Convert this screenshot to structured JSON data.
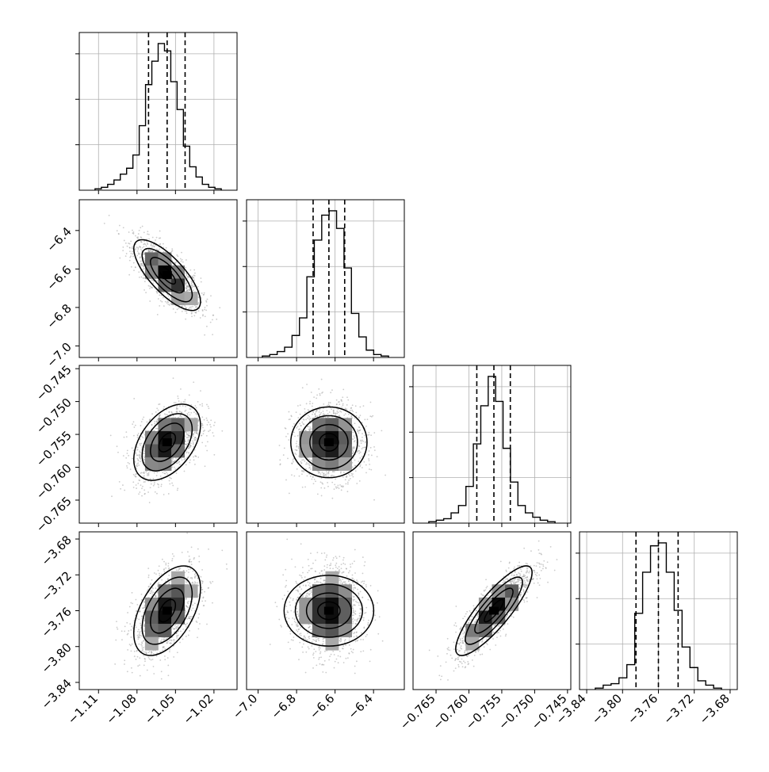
{
  "chart_data": {
    "type": "corner",
    "parameters": [
      {
        "index": 0,
        "range": [
          -1.125,
          -1.002
        ],
        "ticks": [
          -1.11,
          -1.08,
          -1.05,
          -1.02
        ],
        "tick_labels": [
          "−1.11",
          "−1.08",
          "−1.05",
          "−1.02"
        ],
        "quantiles": [
          -1.071,
          -1.0565,
          -1.0425
        ],
        "hist_values": [
          0.01,
          0.02,
          0.04,
          0.07,
          0.11,
          0.15,
          0.24,
          0.44,
          0.72,
          0.88,
          1.0,
          0.95,
          0.74,
          0.55,
          0.3,
          0.16,
          0.09,
          0.04,
          0.02,
          0.01
        ],
        "hist_yticks": [
          0.31,
          0.62,
          0.93
        ]
      },
      {
        "index": 1,
        "range": [
          -7.06,
          -6.24
        ],
        "ticks": [
          -7.0,
          -6.8,
          -6.6,
          -6.4
        ],
        "tick_labels": [
          "−7.0",
          "−6.8",
          "−6.6",
          "−6.4"
        ],
        "quantiles": [
          -6.714,
          -6.632,
          -6.55
        ],
        "hist_values": [
          0.01,
          0.02,
          0.04,
          0.07,
          0.15,
          0.27,
          0.55,
          0.8,
          0.97,
          1.0,
          0.88,
          0.61,
          0.3,
          0.14,
          0.05,
          0.02,
          0.01
        ],
        "hist_yticks": [
          0.31,
          0.62,
          0.93
        ]
      },
      {
        "index": 2,
        "range": [
          -0.7685,
          -0.7445
        ],
        "ticks": [
          -0.765,
          -0.76,
          -0.755,
          -0.75,
          -0.745
        ],
        "tick_labels": [
          "−0.765",
          "−0.760",
          "−0.755",
          "−0.750",
          "−0.745"
        ],
        "quantiles": [
          -0.7588,
          -0.7562,
          -0.7537
        ],
        "hist_values": [
          0.01,
          0.02,
          0.03,
          0.07,
          0.12,
          0.25,
          0.54,
          0.8,
          1.0,
          0.83,
          0.51,
          0.28,
          0.12,
          0.07,
          0.04,
          0.02,
          0.01
        ],
        "hist_yticks": [
          0.31,
          0.62,
          0.93
        ]
      },
      {
        "index": 3,
        "range": [
          -3.848,
          -3.672
        ],
        "ticks": [
          -3.84,
          -3.8,
          -3.76,
          -3.72,
          -3.68
        ],
        "tick_labels": [
          "−3.84",
          "−3.80",
          "−3.76",
          "−3.72",
          "−3.68"
        ],
        "quantiles": [
          -3.785,
          -3.76,
          -3.738
        ],
        "hist_values": [
          0.01,
          0.03,
          0.04,
          0.08,
          0.17,
          0.52,
          0.8,
          0.98,
          1.0,
          0.8,
          0.54,
          0.29,
          0.15,
          0.06,
          0.03,
          0.01
        ],
        "hist_yticks": [
          0.31,
          0.62,
          0.93
        ]
      }
    ],
    "pairs": [
      {
        "row": 1,
        "col": 0,
        "mean": [
          -1.0565,
          -6.632
        ],
        "sd": [
          0.013,
          0.092
        ],
        "corr": -0.75
      },
      {
        "row": 2,
        "col": 0,
        "mean": [
          -1.0565,
          -0.7562
        ],
        "sd": [
          0.013,
          0.0029
        ],
        "corr": 0.45
      },
      {
        "row": 2,
        "col": 1,
        "mean": [
          -6.632,
          -0.7562
        ],
        "sd": [
          0.092,
          0.0029
        ],
        "corr": 0.0
      },
      {
        "row": 3,
        "col": 0,
        "mean": [
          -1.0565,
          -3.76
        ],
        "sd": [
          0.013,
          0.025
        ],
        "corr": 0.5
      },
      {
        "row": 3,
        "col": 1,
        "mean": [
          -6.632,
          -3.76
        ],
        "sd": [
          0.092,
          0.025
        ],
        "corr": 0.0
      },
      {
        "row": 3,
        "col": 2,
        "mean": [
          -0.7562,
          -3.76
        ],
        "sd": [
          0.0029,
          0.025
        ],
        "corr": 0.85
      }
    ],
    "contour_levels_sigma": [
      0.5,
      1.0,
      1.5,
      2.0
    ],
    "grid": true,
    "xlabel": "",
    "ylabel": ""
  }
}
